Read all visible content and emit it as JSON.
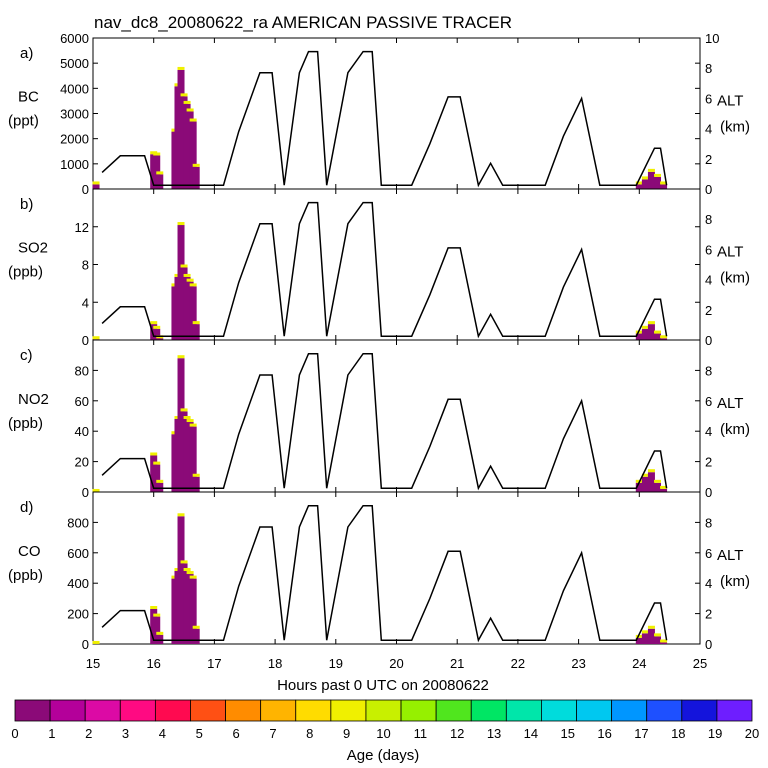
{
  "title": "nav_dc8_20080622_ra AMERICAN PASSIVE TRACER",
  "xlabel": "Hours past 0 UTC on 20080622",
  "x_ticks": [
    15,
    16,
    17,
    18,
    19,
    20,
    21,
    22,
    23,
    24,
    25
  ],
  "colorbar": {
    "label": "Age (days)",
    "ticks": [
      0,
      1,
      2,
      3,
      4,
      5,
      6,
      7,
      8,
      9,
      10,
      11,
      12,
      13,
      14,
      15,
      16,
      17,
      18,
      19,
      20
    ],
    "colors": [
      "#8b0a78",
      "#b4009a",
      "#dc0aa5",
      "#ff0a82",
      "#ff0a50",
      "#ff5014",
      "#ff8c00",
      "#ffb400",
      "#ffdc00",
      "#f0f000",
      "#c8f000",
      "#96f000",
      "#50e61e",
      "#00e664",
      "#00e6aa",
      "#00dcdc",
      "#00c8f0",
      "#0096ff",
      "#1e50ff",
      "#1414dc",
      "#6e1eff"
    ]
  },
  "chart_data": [
    {
      "type": "bar",
      "panel_label": "a)",
      "ylabel": [
        "BC",
        "(ppt)"
      ],
      "ylim": [
        0,
        6000
      ],
      "y_ticks": [
        0,
        1000,
        2000,
        3000,
        4000,
        5000,
        6000
      ],
      "y2label": [
        "ALT",
        "(km)"
      ],
      "y2lim": [
        0,
        10
      ],
      "y2_ticks": [
        0,
        2,
        4,
        6,
        8,
        10
      ],
      "series": [
        {
          "name": "tracer",
          "x": [
            15.05,
            16.0,
            16.05,
            16.1,
            16.35,
            16.4,
            16.45,
            16.5,
            16.55,
            16.6,
            16.65,
            16.7,
            24.0,
            24.1,
            24.2,
            24.3,
            24.4
          ],
          "values": [
            300,
            1500,
            1450,
            700,
            2400,
            4200,
            4850,
            3800,
            3500,
            3200,
            2800,
            1000,
            300,
            500,
            800,
            600,
            300
          ]
        },
        {
          "name": "altitude",
          "x": [
            15.15,
            15.45,
            15.85,
            16.0,
            16.5,
            16.65,
            16.95,
            17.15,
            17.4,
            17.75,
            17.95,
            18.15,
            18.4,
            18.55,
            18.7,
            18.85,
            19.2,
            19.45,
            19.6,
            19.75,
            19.9,
            20.05,
            20.25,
            20.55,
            20.85,
            21.05,
            21.35,
            21.55,
            21.75,
            22.25,
            22.45,
            22.75,
            23.05,
            23.35,
            23.65,
            23.95,
            24.25,
            24.35,
            24.45
          ],
          "values": [
            1.1,
            2.2,
            2.2,
            0.25,
            0.25,
            0.25,
            0.25,
            0.25,
            3.8,
            7.7,
            7.7,
            0.25,
            7.7,
            9.1,
            9.1,
            0.25,
            7.7,
            9.1,
            9.1,
            0.25,
            0.25,
            0.25,
            0.25,
            3.0,
            6.1,
            6.1,
            0.25,
            1.7,
            0.25,
            0.25,
            0.25,
            3.5,
            6.0,
            0.25,
            0.25,
            0.25,
            2.7,
            2.7,
            0.25
          ]
        }
      ]
    },
    {
      "type": "bar",
      "panel_label": "b)",
      "ylabel": [
        "SO2",
        "(ppb)"
      ],
      "ylim": [
        0,
        16
      ],
      "y_ticks": [
        0,
        4,
        8,
        12
      ],
      "y2label": [
        "ALT",
        "(km)"
      ],
      "y2lim": [
        0,
        10
      ],
      "y2_ticks": [
        0,
        2,
        4,
        6,
        8
      ],
      "series": [
        {
          "name": "tracer",
          "x": [
            15.05,
            16.0,
            16.05,
            16.1,
            16.35,
            16.4,
            16.45,
            16.5,
            16.55,
            16.6,
            16.65,
            16.7,
            24.0,
            24.1,
            24.2,
            24.3,
            24.4
          ],
          "values": [
            0.4,
            2.0,
            1.5,
            0.5,
            6.0,
            7.0,
            12.5,
            8.0,
            7.0,
            6.5,
            6.0,
            2.0,
            1.0,
            1.5,
            2.0,
            1.0,
            0.5
          ]
        },
        {
          "name": "altitude",
          "x": [
            15.15,
            15.45,
            15.85,
            16.0,
            16.5,
            16.65,
            16.95,
            17.15,
            17.4,
            17.75,
            17.95,
            18.15,
            18.4,
            18.55,
            18.7,
            18.85,
            19.2,
            19.45,
            19.6,
            19.75,
            19.9,
            20.05,
            20.25,
            20.55,
            20.85,
            21.05,
            21.35,
            21.55,
            21.75,
            22.25,
            22.45,
            22.75,
            23.05,
            23.35,
            23.65,
            23.95,
            24.25,
            24.35,
            24.45
          ],
          "values": [
            1.1,
            2.2,
            2.2,
            0.25,
            0.25,
            0.25,
            0.25,
            0.25,
            3.8,
            7.7,
            7.7,
            0.25,
            7.7,
            9.1,
            9.1,
            0.25,
            7.7,
            9.1,
            9.1,
            0.25,
            0.25,
            0.25,
            0.25,
            3.0,
            6.1,
            6.1,
            0.25,
            1.7,
            0.25,
            0.25,
            0.25,
            3.5,
            6.0,
            0.25,
            0.25,
            0.25,
            2.7,
            2.7,
            0.25
          ]
        }
      ]
    },
    {
      "type": "bar",
      "panel_label": "c)",
      "ylabel": [
        "NO2",
        "(ppb)"
      ],
      "ylim": [
        0,
        100
      ],
      "y_ticks": [
        0,
        20,
        40,
        60,
        80
      ],
      "y2label": [
        "ALT",
        "(km)"
      ],
      "y2lim": [
        0,
        10
      ],
      "y2_ticks": [
        0,
        2,
        4,
        6,
        8
      ],
      "series": [
        {
          "name": "tracer",
          "x": [
            15.05,
            16.0,
            16.05,
            16.1,
            16.35,
            16.4,
            16.45,
            16.5,
            16.55,
            16.6,
            16.65,
            16.7,
            24.0,
            24.1,
            24.2,
            24.3,
            24.4
          ],
          "values": [
            2,
            26,
            20,
            8,
            40,
            50,
            90,
            55,
            50,
            48,
            45,
            12,
            8,
            12,
            15,
            8,
            4
          ]
        },
        {
          "name": "altitude",
          "x": [
            15.15,
            15.45,
            15.85,
            16.0,
            16.5,
            16.65,
            16.95,
            17.15,
            17.4,
            17.75,
            17.95,
            18.15,
            18.4,
            18.55,
            18.7,
            18.85,
            19.2,
            19.45,
            19.6,
            19.75,
            19.9,
            20.05,
            20.25,
            20.55,
            20.85,
            21.05,
            21.35,
            21.55,
            21.75,
            22.25,
            22.45,
            22.75,
            23.05,
            23.35,
            23.65,
            23.95,
            24.25,
            24.35,
            24.45
          ],
          "values": [
            1.1,
            2.2,
            2.2,
            0.25,
            0.25,
            0.25,
            0.25,
            0.25,
            3.8,
            7.7,
            7.7,
            0.25,
            7.7,
            9.1,
            9.1,
            0.25,
            7.7,
            9.1,
            9.1,
            0.25,
            0.25,
            0.25,
            0.25,
            3.0,
            6.1,
            6.1,
            0.25,
            1.7,
            0.25,
            0.25,
            0.25,
            3.5,
            6.0,
            0.25,
            0.25,
            0.25,
            2.7,
            2.7,
            0.25
          ]
        }
      ]
    },
    {
      "type": "bar",
      "panel_label": "d)",
      "ylabel": [
        "CO",
        "(ppb)"
      ],
      "ylim": [
        0,
        1000
      ],
      "y_ticks": [
        0,
        200,
        400,
        600,
        800
      ],
      "y2label": [
        "ALT",
        "(km)"
      ],
      "y2lim": [
        0,
        10
      ],
      "y2_ticks": [
        0,
        2,
        4,
        6,
        8
      ],
      "series": [
        {
          "name": "tracer",
          "x": [
            15.05,
            16.0,
            16.05,
            16.1,
            16.35,
            16.4,
            16.45,
            16.5,
            16.55,
            16.6,
            16.65,
            16.7,
            24.0,
            24.1,
            24.2,
            24.3,
            24.4
          ],
          "values": [
            20,
            250,
            200,
            80,
            450,
            500,
            860,
            550,
            500,
            480,
            450,
            120,
            60,
            90,
            120,
            70,
            30
          ]
        },
        {
          "name": "altitude",
          "x": [
            15.15,
            15.45,
            15.85,
            16.0,
            16.5,
            16.65,
            16.95,
            17.15,
            17.4,
            17.75,
            17.95,
            18.15,
            18.4,
            18.55,
            18.7,
            18.85,
            19.2,
            19.45,
            19.6,
            19.75,
            19.9,
            20.05,
            20.25,
            20.55,
            20.85,
            21.05,
            21.35,
            21.55,
            21.75,
            22.25,
            22.45,
            22.75,
            23.05,
            23.35,
            23.65,
            23.95,
            24.25,
            24.35,
            24.45
          ],
          "values": [
            1.1,
            2.2,
            2.2,
            0.25,
            0.25,
            0.25,
            0.25,
            0.25,
            3.8,
            7.7,
            7.7,
            0.25,
            7.7,
            9.1,
            9.1,
            0.25,
            7.7,
            9.1,
            9.1,
            0.25,
            0.25,
            0.25,
            0.25,
            3.0,
            6.1,
            6.1,
            0.25,
            1.7,
            0.25,
            0.25,
            0.25,
            3.5,
            6.0,
            0.25,
            0.25,
            0.25,
            2.7,
            2.7,
            0.25
          ]
        }
      ]
    }
  ]
}
